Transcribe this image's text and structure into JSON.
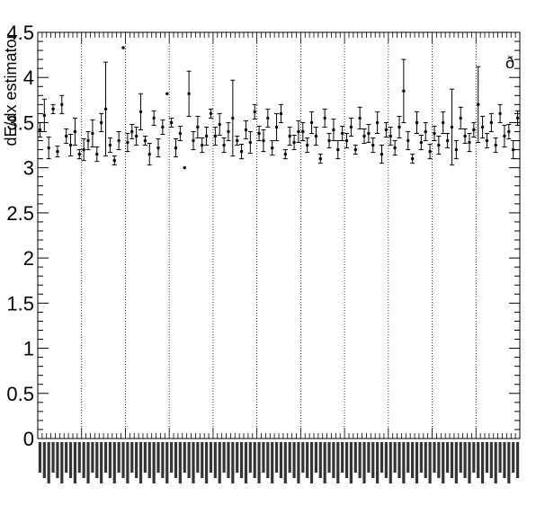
{
  "chart_data": {
    "type": "scatter",
    "title": "",
    "xlabel": "",
    "ylabel": "dE/dx estimator",
    "corner_label": "ð",
    "ylim": [
      0,
      4.5
    ],
    "yticks": [
      "0",
      "0.5",
      "1",
      "1.5",
      "2",
      "2.5",
      "3",
      "3.5",
      "4",
      "4.5"
    ],
    "n_groups": 11,
    "groups": [
      [
        3.42,
        3.58,
        3.22,
        3.65,
        3.18,
        3.7,
        3.35,
        3.25,
        3.4,
        3.15
      ],
      [
        3.2,
        3.3,
        3.38,
        3.15,
        3.5,
        3.65,
        3.25,
        3.08,
        3.3,
        4.33
      ],
      [
        3.28,
        3.4,
        3.35,
        3.62,
        3.3,
        3.15,
        3.55,
        3.22,
        3.45,
        3.82
      ],
      [
        3.5,
        3.22,
        3.38,
        3.0,
        3.82,
        3.3,
        3.45,
        3.25,
        3.35,
        3.6
      ],
      [
        3.35,
        3.48,
        3.25,
        3.4,
        3.55,
        3.3,
        3.18,
        3.42,
        3.28,
        3.62
      ],
      [
        3.38,
        3.3,
        3.55,
        3.22,
        3.45,
        3.6,
        3.15,
        3.35,
        3.28,
        3.4
      ],
      [
        3.4,
        3.25,
        3.5,
        3.35,
        3.1,
        3.55,
        3.3,
        3.42,
        3.2,
        3.38
      ],
      [
        3.3,
        3.45,
        3.2,
        3.55,
        3.35,
        3.38,
        3.25,
        3.5,
        3.15,
        3.42
      ],
      [
        3.35,
        3.22,
        3.45,
        3.85,
        3.3,
        3.1,
        3.5,
        3.28,
        3.4,
        3.18
      ],
      [
        3.38,
        3.25,
        3.5,
        3.3,
        3.45,
        3.2,
        3.55,
        3.35,
        3.28,
        3.42
      ],
      [
        3.7,
        3.45,
        3.3,
        3.5,
        3.25,
        3.6,
        3.35,
        3.4,
        3.2,
        3.55
      ]
    ],
    "errors": [
      [
        0.08,
        0.18,
        0.12,
        0.05,
        0.06,
        0.1,
        0.08,
        0.12,
        0.15,
        0.05
      ],
      [
        0.12,
        0.1,
        0.15,
        0.08,
        0.1,
        0.52,
        0.08,
        0.05,
        0.1,
        0.0
      ],
      [
        0.1,
        0.08,
        0.1,
        0.2,
        0.05,
        0.12,
        0.08,
        0.1,
        0.08,
        0.0
      ],
      [
        0.05,
        0.1,
        0.08,
        0.0,
        0.25,
        0.1,
        0.12,
        0.08,
        0.1,
        0.05
      ],
      [
        0.1,
        0.12,
        0.08,
        0.1,
        0.42,
        0.05,
        0.08,
        0.1,
        0.12,
        0.08
      ],
      [
        0.08,
        0.12,
        0.1,
        0.08,
        0.15,
        0.1,
        0.05,
        0.1,
        0.08,
        0.12
      ],
      [
        0.1,
        0.08,
        0.12,
        0.1,
        0.05,
        0.1,
        0.08,
        0.12,
        0.1,
        0.08
      ],
      [
        0.08,
        0.1,
        0.05,
        0.12,
        0.08,
        0.1,
        0.08,
        0.12,
        0.1,
        0.08
      ],
      [
        0.1,
        0.08,
        0.12,
        0.35,
        0.1,
        0.05,
        0.12,
        0.08,
        0.1,
        0.08
      ],
      [
        0.08,
        0.1,
        0.12,
        0.08,
        0.42,
        0.1,
        0.12,
        0.08,
        0.1,
        0.08
      ],
      [
        0.42,
        0.12,
        0.08,
        0.1,
        0.08,
        0.1,
        0.12,
        0.08,
        0.1,
        0.08
      ]
    ],
    "grid_x": true,
    "grid_y": false
  }
}
